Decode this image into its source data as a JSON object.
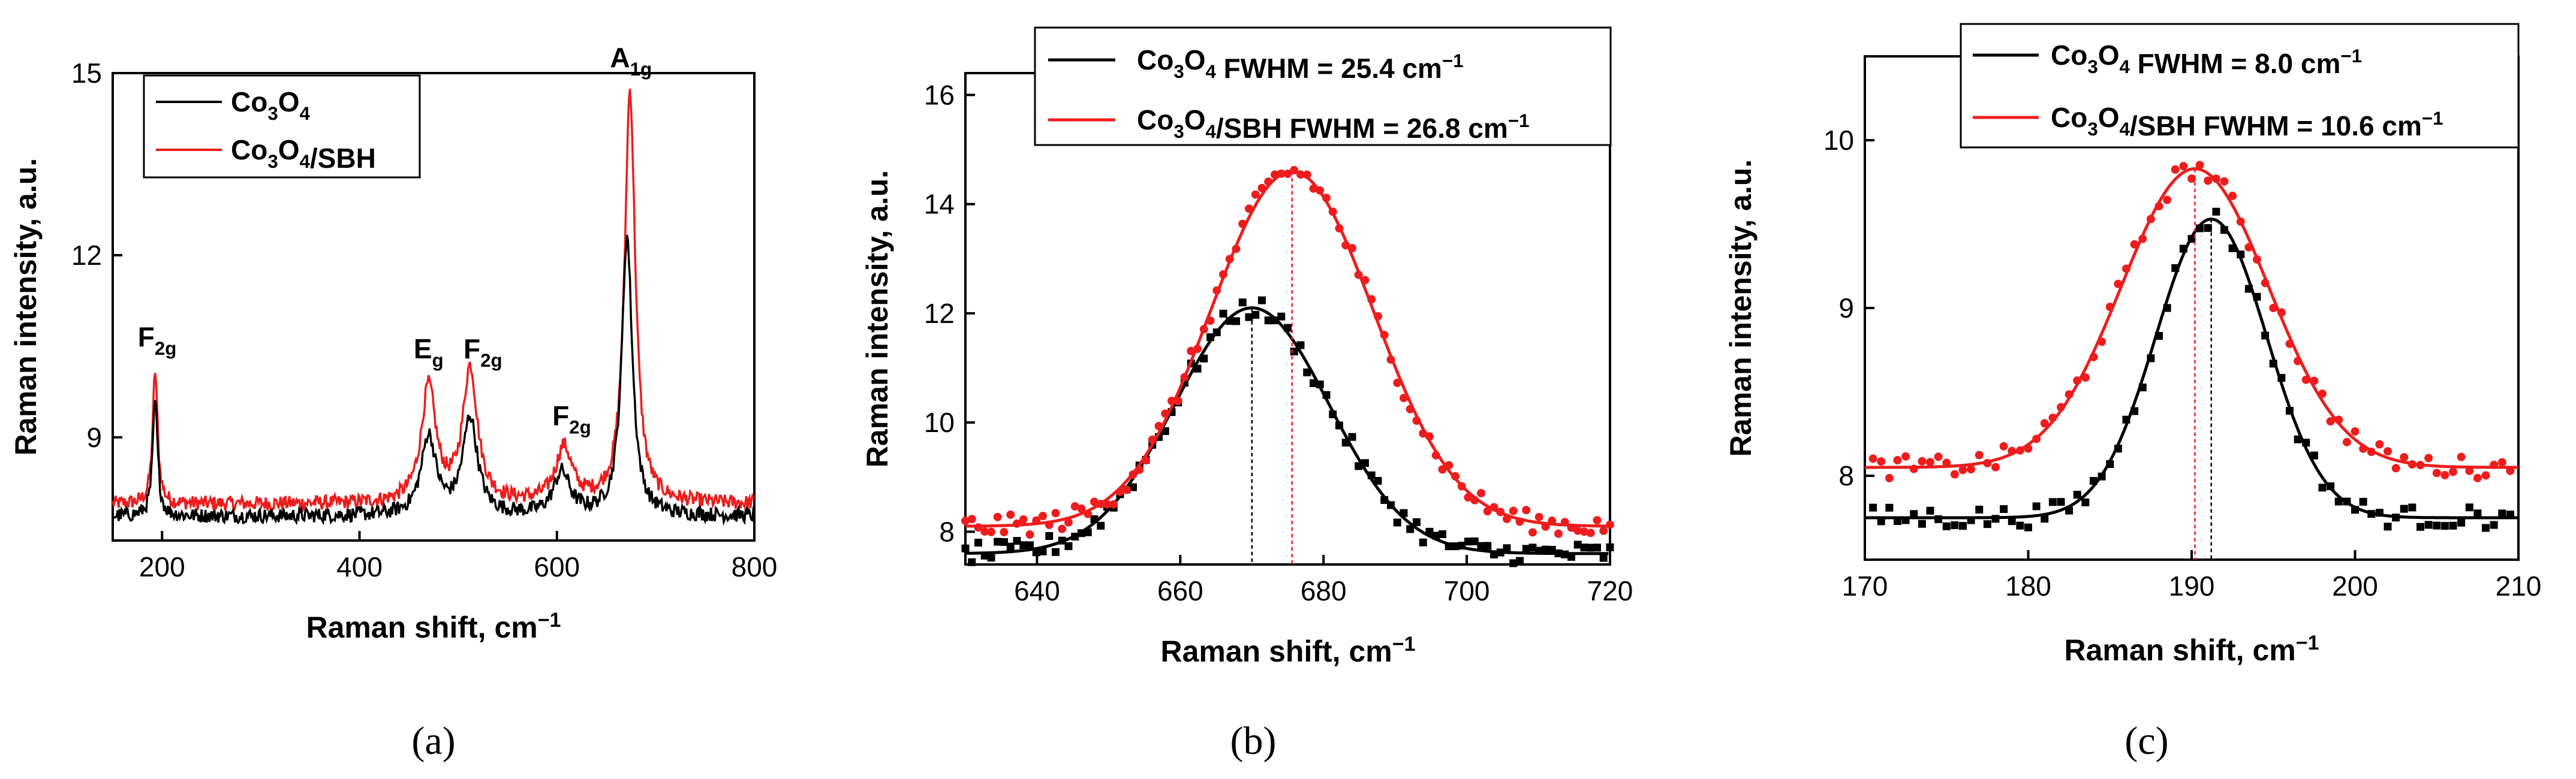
{
  "colors": {
    "black": "#000000",
    "red": "#ee1c1c"
  },
  "chart_data": [
    {
      "id": "a",
      "type": "line",
      "panel_label": "(a)",
      "xlabel": "Raman shift, cm⁻¹",
      "ylabel": "Raman intensity, a.u.",
      "xlim": [
        150,
        800
      ],
      "ylim": [
        7.3,
        15
      ],
      "xticks": [
        200,
        400,
        600,
        800
      ],
      "yticks": [
        9,
        12,
        15
      ],
      "legend": [
        "Co3O4",
        "Co3O4/SBH"
      ],
      "legend_position": "top-left",
      "annotations": [
        {
          "text": "F2g",
          "x": 195,
          "y": 10.5
        },
        {
          "text": "Eg",
          "x": 470,
          "y": 10.3
        },
        {
          "text": "F2g",
          "x": 525,
          "y": 10.3
        },
        {
          "text": "F2g",
          "x": 615,
          "y": 9.2
        },
        {
          "text": "A1g",
          "x": 675,
          "y": 15.1
        }
      ],
      "series": [
        {
          "name": "Co3O4",
          "color": "#000000",
          "baseline": 7.7,
          "noise": 0.12,
          "peaks": [
            [
              193,
              1.9,
              3
            ],
            [
              470,
              1.3,
              9
            ],
            [
              512,
              1.6,
              9
            ],
            [
              605,
              0.7,
              10
            ],
            [
              671,
              4.6,
              6.5
            ]
          ]
        },
        {
          "name": "Co3O4/SBH",
          "color": "#ee1c1c",
          "baseline": 7.9,
          "noise": 0.12,
          "peaks": [
            [
              193,
              2.2,
              3
            ],
            [
              470,
              1.9,
              9
            ],
            [
              512,
              2.2,
              9
            ],
            [
              607,
              0.9,
              10
            ],
            [
              674,
              6.8,
              6.5
            ]
          ]
        }
      ]
    },
    {
      "id": "b",
      "type": "scatter",
      "panel_label": "(b)",
      "xlabel": "Raman shift, cm⁻¹",
      "ylabel": "Raman intensity, a.u.",
      "xlim": [
        630,
        720
      ],
      "ylim": [
        7.4,
        16.4
      ],
      "xticks": [
        640,
        660,
        680,
        700,
        720
      ],
      "yticks": [
        8,
        10,
        12,
        14,
        16
      ],
      "legend": [
        "Co3O4 FWHM = 25.4 cm⁻¹",
        "Co3O4/SBH FWHM = 26.8 cm⁻¹"
      ],
      "legend_position": "top-right",
      "series": [
        {
          "name": "Co3O4",
          "color": "#000000",
          "marker": "square",
          "center": 670,
          "fwhm": 25.4,
          "amplitude": 4.5,
          "baseline": 7.6,
          "x_start": 630,
          "x_end": 720,
          "x_step": 0.9
        },
        {
          "name": "Co3O4/SBH",
          "color": "#ee1c1c",
          "marker": "circle",
          "center": 675.6,
          "fwhm": 26.8,
          "amplitude": 6.5,
          "baseline": 8.1,
          "x_start": 630,
          "x_end": 720,
          "x_step": 0.9
        }
      ]
    },
    {
      "id": "c",
      "type": "scatter",
      "panel_label": "(c)",
      "xlabel": "Raman shift, cm⁻¹",
      "ylabel": "Raman intensity, a.u.",
      "xlim": [
        170,
        210
      ],
      "ylim": [
        7.5,
        10.5
      ],
      "xticks": [
        170,
        180,
        190,
        200,
        210
      ],
      "yticks": [
        8,
        9,
        10
      ],
      "legend": [
        "Co3O4 FWHM = 8.0 cm⁻¹",
        "Co3O4/SBH FWHM = 10.6 cm⁻¹"
      ],
      "legend_position": "top-right",
      "series": [
        {
          "name": "Co3O4",
          "color": "#000000",
          "marker": "square",
          "center": 191.2,
          "fwhm": 8.0,
          "amplitude": 1.78,
          "baseline": 7.75,
          "x_start": 170.5,
          "x_end": 209.5,
          "x_step": 0.5
        },
        {
          "name": "Co3O4/SBH",
          "color": "#ee1c1c",
          "marker": "circle",
          "center": 190.2,
          "fwhm": 10.6,
          "amplitude": 1.78,
          "baseline": 8.05,
          "x_start": 170.5,
          "x_end": 209.5,
          "x_step": 0.5
        }
      ]
    }
  ]
}
